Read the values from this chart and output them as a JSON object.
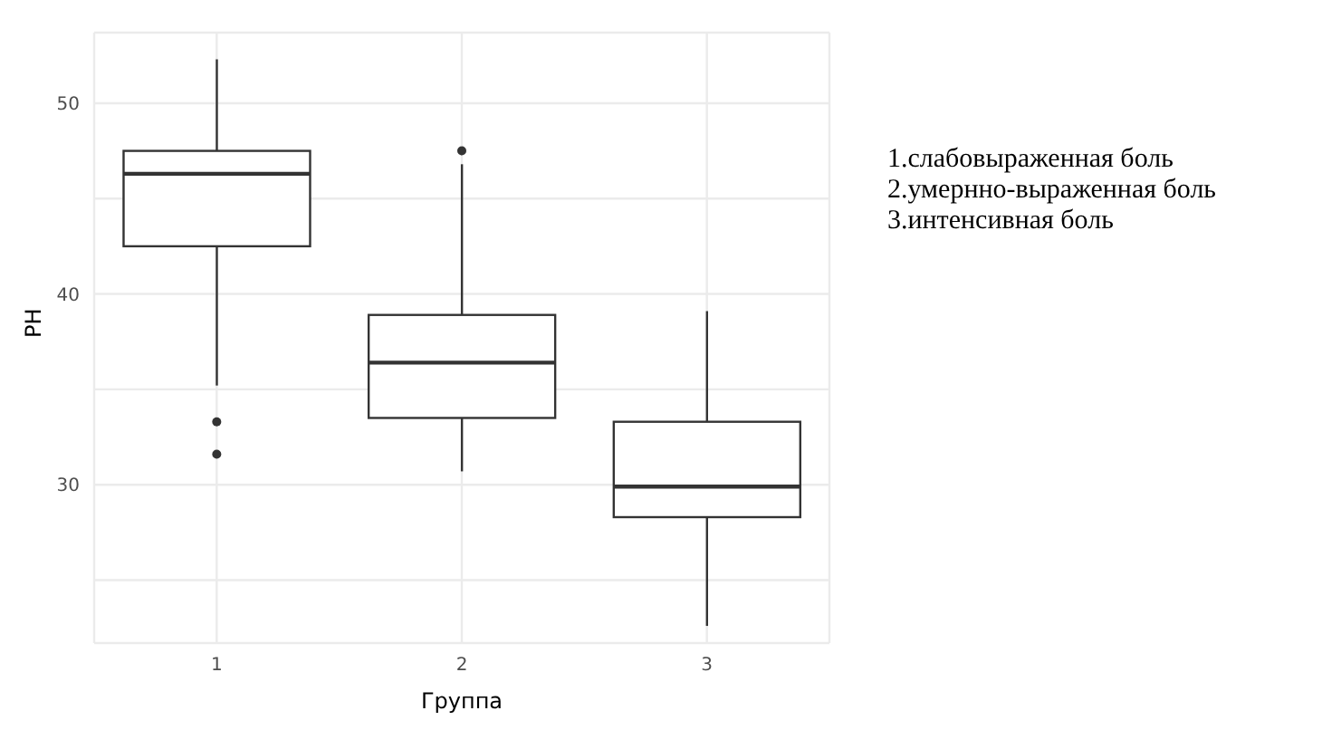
{
  "chart_data": {
    "type": "box",
    "xlabel": "Группа",
    "ylabel": "PH",
    "categories": [
      "1",
      "2",
      "3"
    ],
    "boxes": [
      {
        "low": 35.2,
        "q1": 42.5,
        "median": 46.3,
        "q3": 47.5,
        "high": 52.3,
        "outliers": [
          33.3,
          31.6
        ]
      },
      {
        "low": 30.7,
        "q1": 33.5,
        "median": 36.4,
        "q3": 38.9,
        "high": 46.8,
        "outliers": [
          47.5
        ]
      },
      {
        "low": 22.6,
        "q1": 28.3,
        "median": 29.9,
        "q3": 33.3,
        "high": 39.1
      }
    ],
    "color": "#333333",
    "ylim": [
      21.7,
      53.7
    ],
    "yticks": [
      {
        "value": 25,
        "label": null
      },
      30,
      {
        "value": 35,
        "label": null
      },
      40,
      {
        "value": 45,
        "label": null
      },
      50
    ],
    "grid": true,
    "annotations": [
      "1.слабовыраженная боль",
      "2.умернно-выраженная боль",
      "3.интенсивная боль"
    ]
  }
}
